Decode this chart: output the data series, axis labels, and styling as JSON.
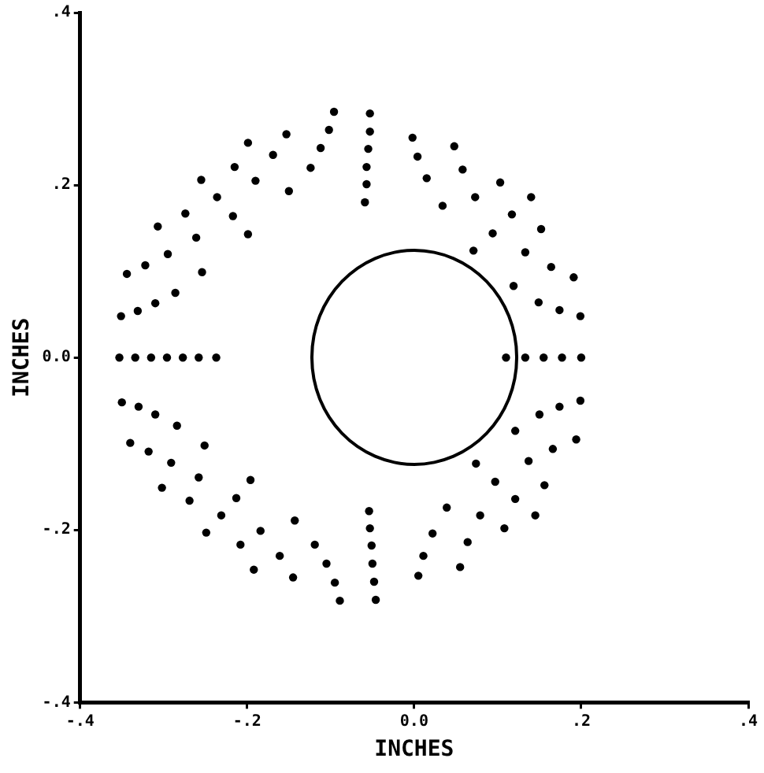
{
  "chart_data": {
    "type": "scatter",
    "xlabel": "INCHES",
    "ylabel": "INCHES",
    "xlim": [
      -0.4,
      0.4
    ],
    "ylim": [
      -0.4,
      0.4
    ],
    "xticks": [
      {
        "value": -0.4,
        "label": "-.4"
      },
      {
        "value": -0.2,
        "label": "-.2"
      },
      {
        "value": 0,
        "label": "0.0"
      },
      {
        "value": 0.2,
        "label": ".2"
      },
      {
        "value": 0.4,
        "label": ".4"
      }
    ],
    "yticks": [
      {
        "value": -0.4,
        "label": "-.4"
      },
      {
        "value": -0.2,
        "label": "-.2"
      },
      {
        "value": 0,
        "label": "0.0"
      },
      {
        "value": 0.2,
        "label": ".2"
      },
      {
        "value": 0.4,
        "label": ".4"
      }
    ],
    "grid": false,
    "legend": false,
    "marker": "circle",
    "series": [
      {
        "color": "#000000",
        "x": [
          -0.096,
          -0.053,
          -0.053,
          -0.055,
          -0.057,
          -0.057,
          -0.059,
          -0.102,
          -0.112,
          -0.124,
          -0.15,
          -0.153,
          -0.169,
          -0.19,
          -0.217,
          -0.199,
          -0.199,
          -0.215,
          -0.236,
          -0.255,
          -0.274,
          -0.261,
          -0.254,
          -0.307,
          -0.295,
          -0.286,
          -0.344,
          -0.322,
          -0.351,
          -0.331,
          -0.31,
          -0.353,
          -0.334,
          -0.315,
          -0.296,
          -0.277,
          -0.258,
          -0.237,
          -0.002,
          0.004,
          0.015,
          0.034,
          0.048,
          0.058,
          0.073,
          0.094,
          0.071,
          0.103,
          0.117,
          0.133,
          0.119,
          0.14,
          0.152,
          0.164,
          0.149,
          0.174,
          0.199,
          0.191,
          0.11,
          0.133,
          0.155,
          0.177,
          0.2,
          -0.35,
          -0.33,
          -0.31,
          -0.284,
          -0.34,
          -0.318,
          -0.291,
          -0.251,
          -0.258,
          -0.302,
          -0.269,
          -0.196,
          -0.213,
          -0.231,
          -0.249,
          -0.184,
          -0.208,
          -0.192,
          -0.143,
          -0.161,
          -0.145,
          -0.119,
          -0.105,
          -0.095,
          -0.089,
          -0.046,
          -0.048,
          -0.05,
          -0.051,
          -0.053,
          -0.054,
          0.005,
          0.011,
          0.022,
          0.039,
          0.055,
          0.064,
          0.079,
          0.097,
          0.074,
          0.108,
          0.121,
          0.137,
          0.121,
          0.145,
          0.156,
          0.166,
          0.15,
          0.174,
          0.194,
          0.199
        ],
        "values": [
          0.285,
          0.283,
          0.262,
          0.242,
          0.221,
          0.201,
          0.18,
          0.264,
          0.243,
          0.22,
          0.193,
          0.259,
          0.235,
          0.205,
          0.164,
          0.143,
          0.249,
          0.221,
          0.186,
          0.206,
          0.167,
          0.139,
          0.099,
          0.152,
          0.12,
          0.075,
          0.097,
          0.107,
          0.048,
          0.054,
          0.063,
          0,
          0,
          0,
          0,
          0,
          0,
          0,
          0.255,
          0.233,
          0.208,
          0.176,
          0.245,
          0.218,
          0.186,
          0.144,
          0.124,
          0.203,
          0.166,
          0.122,
          0.083,
          0.186,
          0.149,
          0.105,
          0.064,
          0.055,
          0.048,
          0.093,
          0,
          0,
          0,
          0,
          0,
          -0.052,
          -0.057,
          -0.066,
          -0.079,
          -0.099,
          -0.109,
          -0.122,
          -0.102,
          -0.139,
          -0.151,
          -0.166,
          -0.142,
          -0.163,
          -0.183,
          -0.203,
          -0.201,
          -0.217,
          -0.246,
          -0.189,
          -0.23,
          -0.255,
          -0.217,
          -0.239,
          -0.261,
          -0.282,
          -0.281,
          -0.26,
          -0.239,
          -0.218,
          -0.198,
          -0.178,
          -0.253,
          -0.23,
          -0.204,
          -0.174,
          -0.243,
          -0.214,
          -0.183,
          -0.144,
          -0.123,
          -0.198,
          -0.164,
          -0.12,
          -0.085,
          -0.183,
          -0.148,
          -0.106,
          -0.066,
          -0.057,
          -0.095,
          -0.05
        ]
      }
    ]
  }
}
